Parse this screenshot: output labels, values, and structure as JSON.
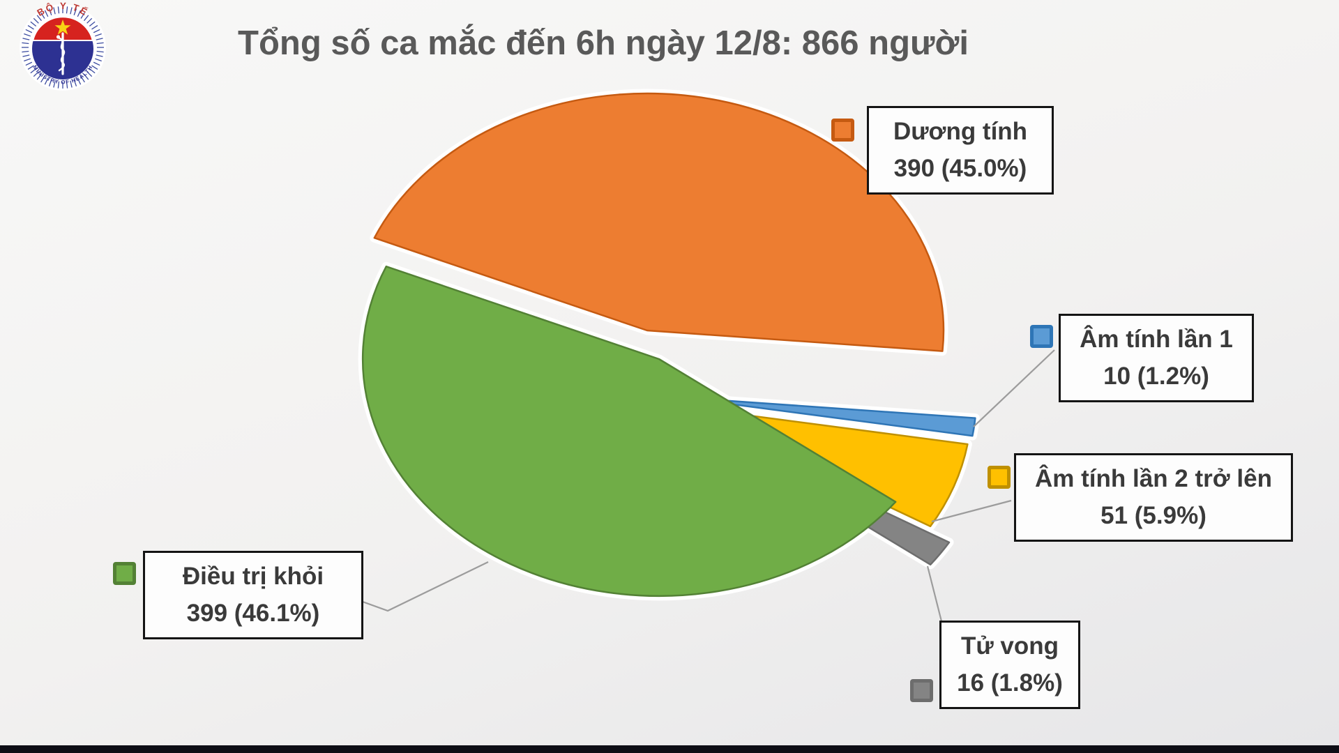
{
  "title": "Tổng số ca mắc đến 6h ngày 12/8: 866 người",
  "logo": {
    "top": "BỘ Y TẾ",
    "bottom": "MINISTRY OF HEALTH"
  },
  "chart_data": {
    "type": "pie",
    "title": "Tổng số ca mắc đến 6h ngày 12/8: 866 người",
    "total": 866,
    "legend_style": "callout-boxes-with-leader-lines",
    "slices": [
      {
        "label": "Dương tính",
        "value": 390,
        "percent": 45.0,
        "display": "390 (45.0%)",
        "color": "#ED7D31",
        "border": "#C55A11"
      },
      {
        "label": "Âm tính lần 1",
        "value": 10,
        "percent": 1.2,
        "display": "10 (1.2%)",
        "color": "#5B9BD5",
        "border": "#2E75B6"
      },
      {
        "label": "Âm tính lần 2 trở lên",
        "value": 51,
        "percent": 5.9,
        "display": "51 (5.9%)",
        "color": "#FFC000",
        "border": "#BF9000"
      },
      {
        "label": "Tử vong",
        "value": 16,
        "percent": 1.8,
        "display": "16 (1.8%)",
        "color": "#848484",
        "border": "#6D6D6D"
      },
      {
        "label": "Điều trị khỏi",
        "value": 399,
        "percent": 46.1,
        "display": "399 (46.1%)",
        "color": "#70AD47",
        "border": "#538135"
      }
    ]
  }
}
